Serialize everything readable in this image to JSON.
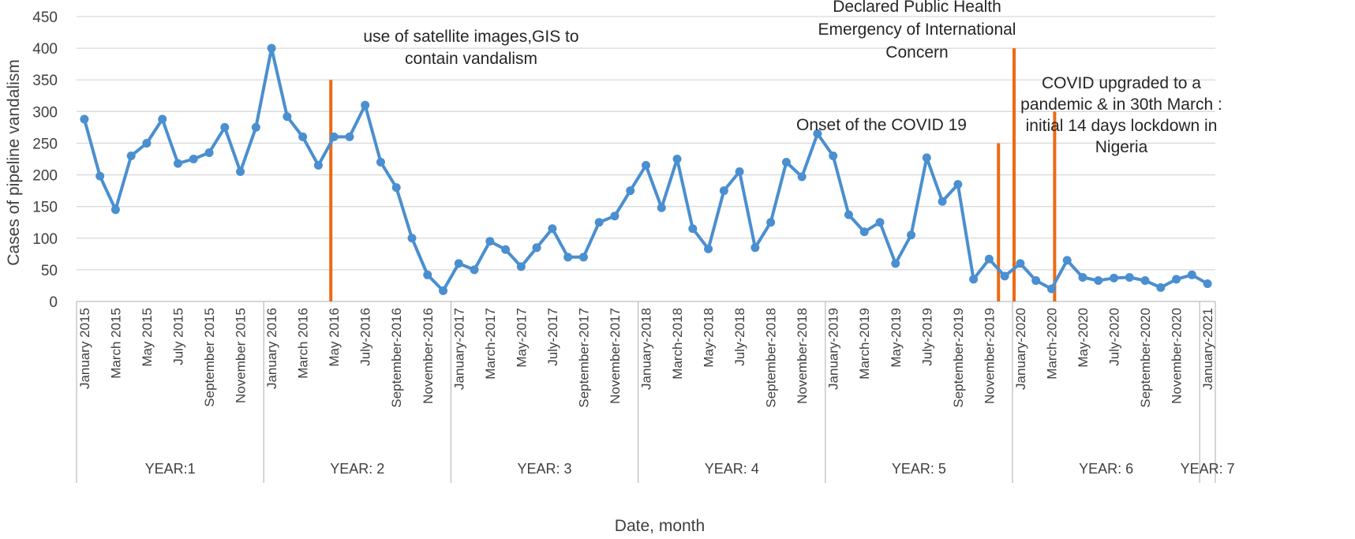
{
  "chart_data": {
    "type": "line",
    "xlabel": "Date, month",
    "ylabel": "Cases of pipeline vandalism",
    "ylim": [
      0,
      450
    ],
    "yticks": [
      "0",
      "50",
      "100",
      "150",
      "200",
      "250",
      "300",
      "350",
      "400",
      "450"
    ],
    "grid": true,
    "line_color": "#4a8fd0",
    "marker_color": "#4a8fd0",
    "event_line_color": "#ec6a13",
    "grid_color": "#d9d9d9",
    "x_tick_labels": [
      "January 2015",
      "March 2015",
      "May 2015",
      "July 2015",
      "September 2015",
      "November 2015",
      "January 2016",
      "March 2016",
      "May 2016",
      "July-2016",
      "September-2016",
      "November-2016",
      "January-2017",
      "March-2017",
      "May-2017",
      "July-2017",
      "September-2017",
      "November-2017",
      "January-2018",
      "March-2018",
      "May-2018",
      "July-2018",
      "September-2018",
      "November-2018",
      "January-2019",
      "March-2019",
      "May-2019",
      "July-2019",
      "September-2019",
      "November-2019",
      "January-2020",
      "March-2020",
      "May-2020",
      "July-2020",
      "September-2020",
      "November-2020",
      "January-2021"
    ],
    "years": [
      "YEAR:1",
      "YEAR: 2",
      "YEAR: 3",
      "YEAR: 4",
      "YEAR: 5",
      "YEAR: 6",
      "YEAR: 7"
    ],
    "series": [
      {
        "values": [
          288,
          198,
          145,
          230,
          250,
          288,
          218,
          225,
          235,
          275,
          205,
          275,
          400,
          292,
          260,
          215,
          260,
          260,
          310,
          220,
          180,
          100,
          42,
          17,
          60,
          50,
          95,
          82,
          55,
          85,
          115,
          70,
          70,
          125,
          135,
          175,
          215,
          148,
          225,
          115,
          83,
          175,
          205,
          85,
          125,
          220,
          197,
          265,
          230,
          137,
          110,
          125,
          60,
          105,
          227,
          158,
          185,
          35,
          67,
          40,
          60,
          33,
          20,
          65,
          38,
          33,
          37,
          38,
          33,
          22,
          35,
          42,
          28
        ]
      }
    ],
    "event_lines": [
      {
        "label": "use of satellite images,GIS to\ncontain vandalism",
        "month_index": 15.8,
        "y_top": 350
      },
      {
        "label": "Onset of the COVID 19",
        "month_index": 58.6,
        "y_top": 250
      },
      {
        "label": "Declared Public Health\nEmergency of International\nConcern",
        "month_index": 59.6,
        "y_top": 400
      },
      {
        "label": "COVID upgraded to a\npandemic & in 30th March :\ninitial  14 days lockdown in\nNigeria",
        "month_index": 62.2,
        "y_top": 300
      }
    ]
  }
}
